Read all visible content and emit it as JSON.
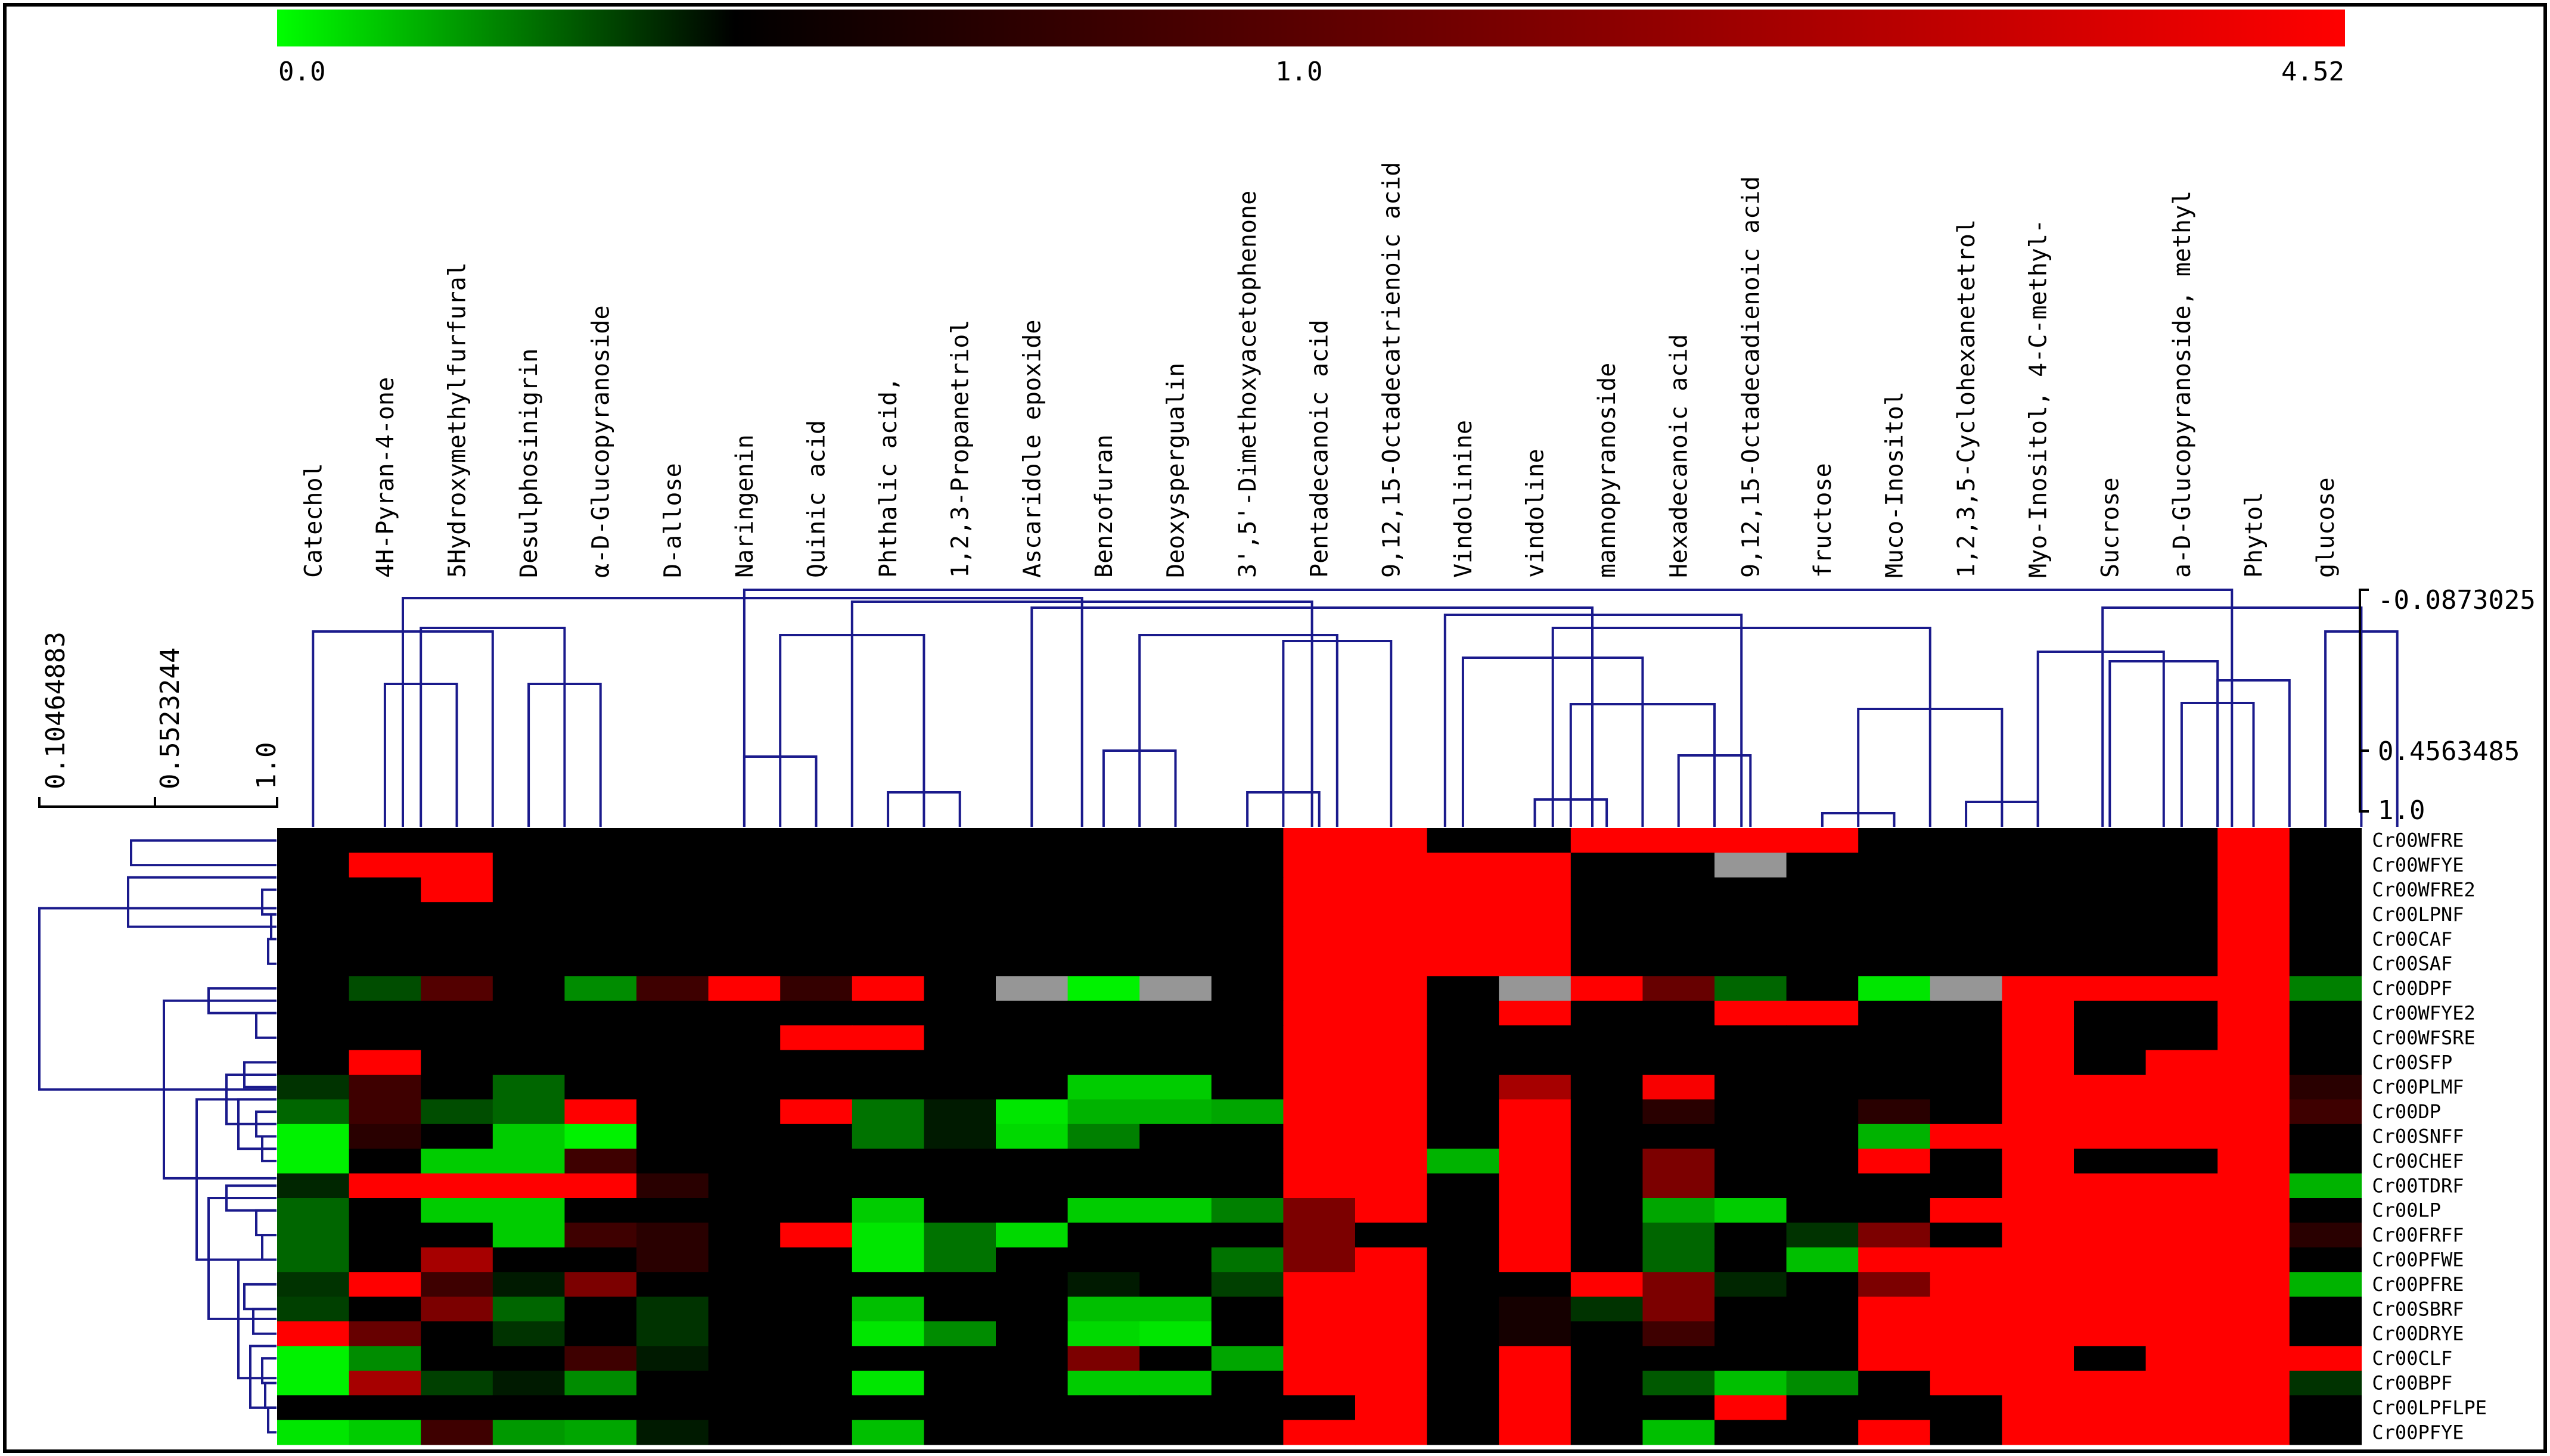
{
  "chart_data": {
    "type": "heatmap",
    "title": "",
    "color_scale": {
      "min_label": "0.0",
      "mid_label": "1.0",
      "max_label": "4.52",
      "min": 0.0,
      "mid": 1.0,
      "max": 4.52,
      "low_color": "#00ff00",
      "mid_color": "#000000",
      "high_color": "#ff0000",
      "missing_color": "#969696"
    },
    "column_dendrogram_scale": [
      "-0.0873025",
      "0.4563485",
      "1.0"
    ],
    "row_dendrogram_scale": [
      "0.10464883",
      "0.5523244",
      "1.0"
    ],
    "columns": [
      "Catechol",
      "4H-Pyran-4-one",
      "5Hydroxymethylfurfural",
      "Desulphosinigrin",
      "α-D-Glucopyranoside",
      "D-allose",
      "Naringenin",
      "Quinic acid",
      "Phthalic acid,",
      "1,2,3-Propanetriol",
      "Ascaridole epoxide",
      "Benzofuran",
      "Deoxyspergualin",
      "3',5'-Dimethoxyacetophenone",
      "Pentadecanoic acid",
      "9,12,15-Octadecatrienoic acid",
      "Vindolinine",
      "vindoline",
      "mannopyranoside",
      "Hexadecanoic acid",
      "9,12,15-Octadecadienoic acid",
      "fructose",
      "Muco-Inositol",
      "1,2,3,5-Cyclohexanetetrol",
      "Myo-Inositol, 4-C-methyl-",
      "Sucrose",
      "a-D-Glucopyranoside, methyl",
      "Phytol",
      "glucose"
    ],
    "rows": [
      "Cr00WFRE",
      "Cr00WFYE",
      "Cr00WFRE2",
      "Cr00LPNF",
      "Cr00CAF",
      "Cr00SAF",
      "Cr00DPF",
      "Cr00WFYE2",
      "Cr00WFSRE",
      "Cr00SFP",
      "Cr00PLMF",
      "Cr00DP",
      "Cr00SNFF",
      "Cr00CHEF",
      "Cr00TDRF",
      "Cr00LP",
      "Cr00FRFF",
      "Cr00PFWE",
      "Cr00PFRE",
      "Cr00SBRF",
      "Cr00DRYE",
      "Cr00CLF",
      "Cr00BPF",
      "Cr00LPFLPE",
      "Cr00PFYE"
    ],
    "values": [
      [
        1,
        1,
        1,
        1,
        1,
        1,
        1,
        1,
        1,
        1,
        1,
        1,
        1,
        1,
        4.52,
        4.52,
        1,
        1,
        4.52,
        4.52,
        4.52,
        4.52,
        1,
        1,
        1,
        1,
        1,
        4.52,
        1
      ],
      [
        1,
        4.52,
        4.52,
        1,
        1,
        1,
        1,
        1,
        1,
        1,
        1,
        1,
        1,
        1,
        4.52,
        4.52,
        4.52,
        4.52,
        1,
        1,
        null,
        1,
        1,
        1,
        1,
        1,
        1,
        4.52,
        1
      ],
      [
        1,
        1,
        4.52,
        1,
        1,
        1,
        1,
        1,
        1,
        1,
        1,
        1,
        1,
        1,
        4.52,
        4.52,
        4.52,
        4.52,
        1,
        1,
        1,
        1,
        1,
        1,
        1,
        1,
        1,
        4.52,
        1
      ],
      [
        1,
        1,
        1,
        1,
        1,
        1,
        1,
        1,
        1,
        1,
        1,
        1,
        1,
        1,
        4.52,
        4.52,
        4.52,
        4.52,
        1,
        1,
        1,
        1,
        1,
        1,
        1,
        1,
        1,
        4.52,
        1
      ],
      [
        1,
        1,
        1,
        1,
        1,
        1,
        1,
        1,
        1,
        1,
        1,
        1,
        1,
        1,
        4.52,
        4.52,
        4.52,
        4.52,
        1,
        1,
        1,
        1,
        1,
        1,
        1,
        1,
        1,
        4.52,
        1
      ],
      [
        1,
        1,
        1,
        1,
        1,
        1,
        1,
        1,
        1,
        1,
        1,
        1,
        1,
        1,
        4.52,
        4.52,
        4.52,
        4.52,
        1,
        1,
        1,
        1,
        1,
        1,
        1,
        1,
        1,
        4.52,
        1
      ],
      [
        1,
        0.7,
        1.4,
        1,
        0.45,
        1.3,
        4.52,
        1.25,
        2.3,
        1,
        null,
        0.05,
        null,
        1,
        4.52,
        2.5,
        1,
        null,
        4.52,
        1.5,
        0.6,
        1,
        0.1,
        null,
        4.52,
        4.52,
        4.52,
        4.52,
        0.5
      ],
      [
        1,
        1,
        1,
        1,
        1,
        1,
        1,
        1,
        1,
        1,
        1,
        1,
        1,
        1,
        4.52,
        4.52,
        1,
        4.52,
        1,
        1,
        4.52,
        4.52,
        1,
        1,
        4.52,
        1,
        1,
        4.52,
        1
      ],
      [
        1,
        1,
        1,
        1,
        1,
        1,
        1,
        4.52,
        4.52,
        1,
        1,
        1,
        1,
        1,
        4.52,
        4.52,
        1,
        1,
        1,
        1,
        1,
        1,
        1,
        1,
        4.52,
        1,
        1,
        4.52,
        1
      ],
      [
        1,
        4.52,
        1,
        1,
        1,
        1,
        1,
        1,
        1,
        1,
        1,
        1,
        1,
        1,
        4.52,
        4.52,
        1,
        1,
        1,
        1,
        1,
        1,
        1,
        1,
        4.52,
        1,
        4.52,
        4.52,
        1
      ],
      [
        0.8,
        1.3,
        1,
        0.6,
        1,
        1,
        1,
        1,
        1,
        1,
        1,
        0.2,
        0.2,
        1,
        4.52,
        4.52,
        1,
        1.8,
        1,
        2.2,
        1,
        1,
        1,
        1,
        4.52,
        4.52,
        4.52,
        4.52,
        1.2
      ],
      [
        0.6,
        1.3,
        0.7,
        0.6,
        4.52,
        1,
        1,
        4.52,
        0.55,
        0.9,
        0.1,
        0.3,
        0.3,
        0.35,
        4.52,
        4.52,
        1,
        4.52,
        1,
        1.2,
        1,
        1,
        1.2,
        1,
        4.52,
        3.4,
        2.5,
        4.52,
        1.3
      ],
      [
        0.05,
        1.2,
        1,
        0.2,
        0.05,
        1,
        1,
        1,
        0.55,
        0.9,
        0.15,
        0.5,
        1,
        1,
        4.52,
        4.52,
        1,
        2.5,
        1,
        1,
        1,
        1,
        0.3,
        4.52,
        4.52,
        3.4,
        4.52,
        3.5,
        1
      ],
      [
        0.05,
        1,
        0.2,
        0.2,
        1.3,
        1,
        1,
        1,
        1,
        1,
        1,
        1,
        1,
        1,
        4.52,
        4.52,
        0.3,
        4.52,
        1,
        1.6,
        1,
        1,
        4.52,
        1,
        4.52,
        1,
        1,
        4.52,
        1
      ],
      [
        0.85,
        3.5,
        4.52,
        4.52,
        2.5,
        1.2,
        1,
        1,
        1,
        1,
        1,
        1,
        1,
        1,
        4.52,
        4.52,
        1,
        2.5,
        1,
        1.6,
        1,
        1,
        1,
        1,
        4.52,
        4.52,
        4.52,
        4.52,
        0.3
      ],
      [
        0.6,
        1,
        0.2,
        0.2,
        1,
        1,
        1,
        1,
        0.2,
        1,
        1,
        0.2,
        0.2,
        0.5,
        1.6,
        4.52,
        1,
        2.5,
        1,
        0.35,
        0.2,
        1,
        1,
        4.52,
        4.52,
        4.52,
        4.52,
        4.52,
        1
      ],
      [
        0.6,
        1,
        1,
        0.2,
        1.3,
        1.2,
        1,
        4.52,
        0.1,
        0.55,
        0.15,
        1,
        1,
        1,
        1.6,
        1,
        1,
        4.52,
        1,
        0.6,
        1,
        0.8,
        1.6,
        1,
        4.52,
        4.52,
        4.52,
        4.52,
        1.2
      ],
      [
        0.6,
        1,
        1.8,
        1,
        1,
        1.2,
        1,
        1,
        0.1,
        0.55,
        1,
        1,
        1,
        0.55,
        1.6,
        4.52,
        1,
        4.52,
        1,
        0.6,
        1,
        0.25,
        4.52,
        4.52,
        4.52,
        4.52,
        4.52,
        4.52,
        1
      ],
      [
        0.8,
        2.8,
        1.3,
        0.9,
        1.6,
        1,
        1,
        1,
        1,
        1,
        1,
        0.9,
        1,
        0.75,
        4.52,
        4.52,
        1,
        1,
        4.52,
        1.6,
        0.85,
        1,
        1.6,
        4.52,
        4.52,
        4.52,
        3.5,
        4.52,
        0.3
      ],
      [
        0.75,
        1,
        1.6,
        0.6,
        1,
        0.8,
        1,
        1,
        0.25,
        1,
        1,
        0.25,
        0.25,
        1,
        4.52,
        4.52,
        1,
        1.1,
        0.8,
        1.6,
        1,
        1,
        2.5,
        4.52,
        4.52,
        4.52,
        4.52,
        4.52,
        1
      ],
      [
        4.52,
        1.5,
        1,
        0.8,
        1,
        0.8,
        1,
        1,
        0.1,
        0.45,
        1,
        0.15,
        0.1,
        1,
        4.52,
        4.52,
        1,
        1.1,
        1,
        1.3,
        1,
        1,
        2.5,
        4.52,
        4.52,
        4.52,
        3.8,
        4.52,
        1
      ],
      [
        0.05,
        0.45,
        1,
        1,
        1.3,
        0.9,
        1,
        1,
        1,
        1,
        1,
        1.6,
        1,
        0.35,
        2.5,
        3.0,
        1,
        4.52,
        1,
        1,
        1,
        1,
        2.5,
        4.52,
        4.52,
        1,
        4.52,
        4.52,
        2.8
      ],
      [
        0.05,
        1.8,
        0.75,
        0.9,
        0.45,
        1,
        1,
        1,
        0.1,
        1,
        1,
        0.2,
        0.2,
        1,
        3.0,
        4.52,
        1,
        4.52,
        1,
        0.65,
        0.25,
        0.45,
        1,
        2.5,
        4.52,
        4.52,
        4.52,
        4.52,
        0.8
      ],
      [
        1,
        1,
        1,
        1,
        1,
        1,
        1,
        1,
        1,
        1,
        1,
        1,
        1,
        1,
        1,
        4.52,
        1,
        4.52,
        1,
        1,
        2.4,
        1,
        1,
        1,
        4.52,
        4.52,
        4.52,
        4.52,
        1
      ],
      [
        0.1,
        0.2,
        1.3,
        0.4,
        0.35,
        0.9,
        1,
        1,
        0.25,
        1,
        1,
        1,
        1,
        1,
        2.5,
        4.52,
        1,
        4.52,
        1,
        0.25,
        1,
        1,
        2.5,
        1,
        4.52,
        4.52,
        4.52,
        4.52,
        1
      ]
    ]
  }
}
